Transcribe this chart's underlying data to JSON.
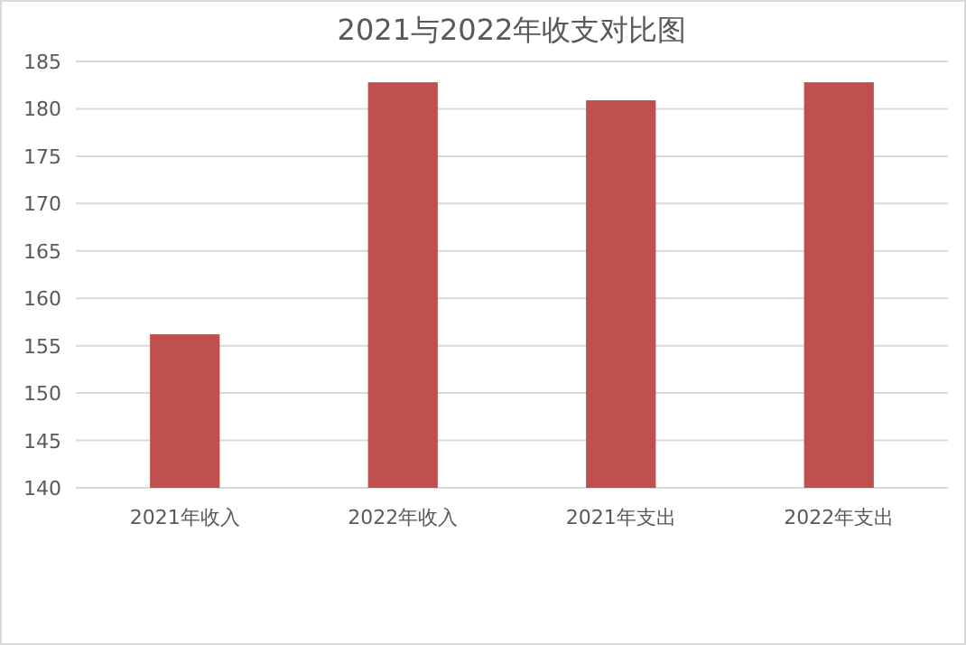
{
  "chart_data": {
    "type": "bar",
    "title": "2021与2022年收支对比图",
    "categories": [
      "2021年收入",
      "2022年收入",
      "2021年支出",
      "2022年支出"
    ],
    "values": [
      156.2,
      182.8,
      180.9,
      182.8
    ],
    "color": "#c0504d",
    "ylim": [
      140,
      185
    ],
    "yticks": [
      140,
      145,
      150,
      155,
      160,
      165,
      170,
      175,
      180,
      185
    ],
    "grid": "y"
  }
}
